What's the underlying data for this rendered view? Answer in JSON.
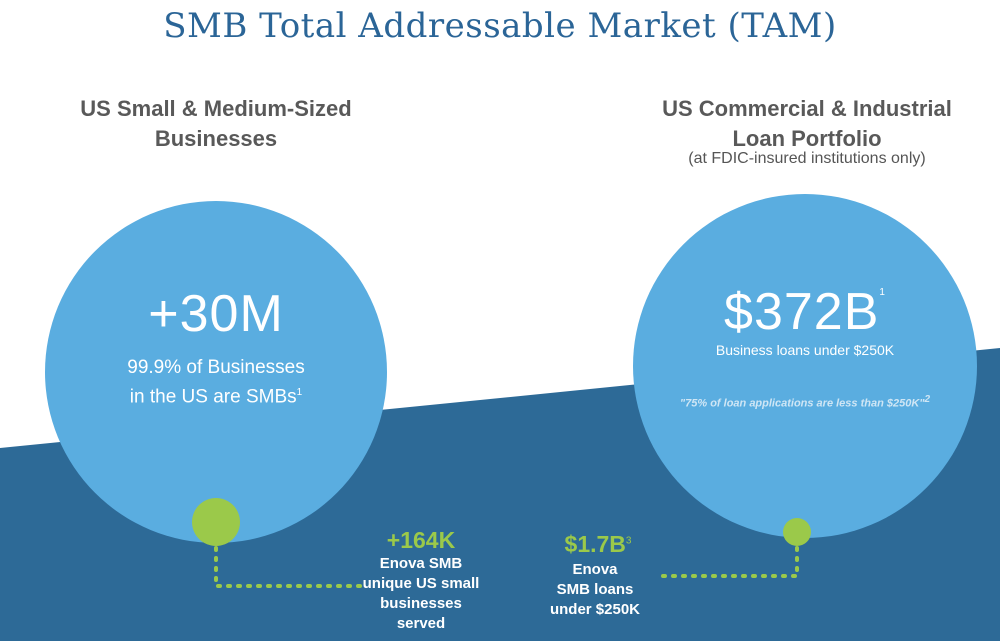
{
  "title": "SMB Total Addressable Market (TAM)",
  "left": {
    "heading_line1": "US Small & Medium-Sized",
    "heading_line2": "Businesses",
    "big_value": "+30M",
    "desc_line1": "99.9% of Businesses",
    "desc_line2": "in the US are SMBs",
    "desc_footnote": "1",
    "callout_value": "+164K",
    "callout_line1": "Enova SMB",
    "callout_line2": "unique US small",
    "callout_line3": "businesses",
    "callout_line4": "served"
  },
  "right": {
    "heading_line1": "US Commercial & Industrial",
    "heading_line2": "Loan Portfolio",
    "subheading": "(at FDIC-insured institutions only)",
    "big_value": "$372B",
    "big_footnote": "1",
    "desc": "Business loans under $250K",
    "quote": "\"75% of loan applications are less than $250K\"",
    "quote_footnote": "2",
    "callout_value": "$1.7B",
    "callout_footnote": "3",
    "callout_line1": "Enova",
    "callout_line2": "SMB loans",
    "callout_line3": "under $250K"
  },
  "colors": {
    "title": "#2b6597",
    "dark_band": "#2d6a97",
    "circle": "#5aade0",
    "accent_green": "#9bc94a"
  }
}
